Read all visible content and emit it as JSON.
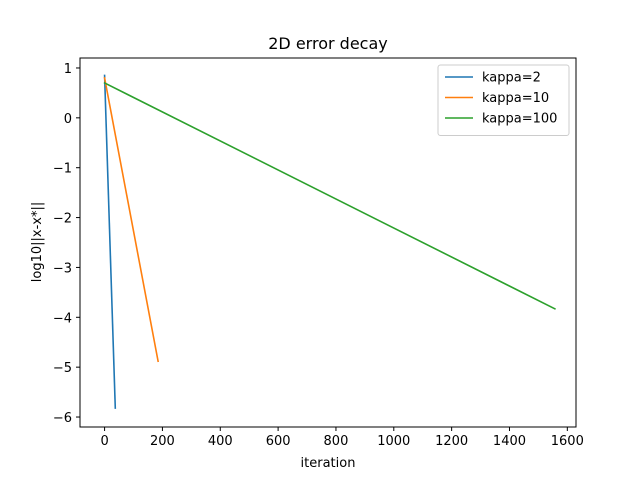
{
  "chart_data": {
    "type": "line",
    "title": "2D error decay",
    "xlabel": "iteration",
    "ylabel": "log10||x-x*||",
    "xlim": [
      -85,
      1630
    ],
    "ylim": [
      -6.2,
      1.2
    ],
    "xticks": [
      0,
      200,
      400,
      600,
      800,
      1000,
      1200,
      1400,
      1600
    ],
    "xtick_labels": [
      "0",
      "200",
      "400",
      "600",
      "800",
      "1000",
      "1200",
      "1400",
      "1600"
    ],
    "yticks": [
      1,
      0,
      -1,
      -2,
      -3,
      -4,
      -5,
      -6
    ],
    "ytick_labels": [
      "1",
      "0",
      "−1",
      "−2",
      "−3",
      "−4",
      "−5",
      "−6"
    ],
    "grid": false,
    "legend_position": "top-right",
    "series": [
      {
        "name": "kappa=2",
        "color": "#1f77b4",
        "x": [
          0,
          37
        ],
        "y": [
          0.85,
          -5.82
        ]
      },
      {
        "name": "kappa=10",
        "color": "#ff7f0e",
        "x": [
          0,
          185
        ],
        "y": [
          0.8,
          -4.88
        ]
      },
      {
        "name": "kappa=100",
        "color": "#2ca02c",
        "x": [
          0,
          1557
        ],
        "y": [
          0.7,
          -3.83
        ]
      }
    ]
  }
}
